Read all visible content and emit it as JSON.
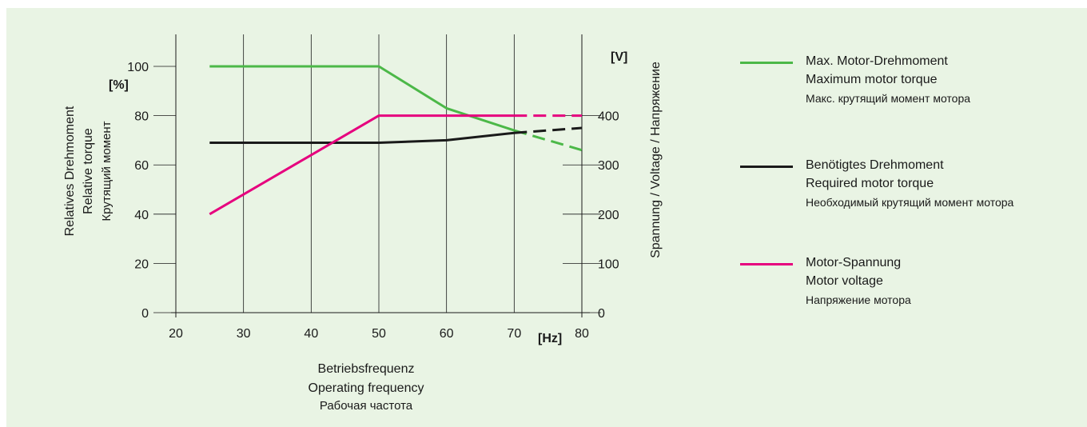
{
  "chart_data": {
    "type": "line",
    "x": [
      25,
      30,
      40,
      50,
      60,
      70,
      80
    ],
    "xlim": [
      20,
      80
    ],
    "ylim_left": [
      0,
      113
    ],
    "ylim_right": [
      0,
      565
    ],
    "x_ticks": [
      "20",
      "30",
      "40",
      "50",
      "60",
      "70",
      "80"
    ],
    "x_unit": "[Hz]",
    "y_ticks_left": [
      "0",
      "20",
      "40",
      "60",
      "80",
      "100"
    ],
    "y_unit_left": "[%]",
    "y_ticks_right": [
      "0",
      "100",
      "200",
      "300",
      "400"
    ],
    "y_unit_right": "[V]",
    "ylabel_left": [
      "Relatives Drehmoment",
      "Relative torque",
      "Крутящий момент"
    ],
    "ylabel_right": "Spannung / Voltage / Напряжение",
    "xlabel": [
      "Betriebsfrequenz",
      "Operating frequency",
      "Рабочая частота"
    ],
    "grid": "vertical",
    "legend_position": "right",
    "series": [
      {
        "name": [
          "Max. Motor-Drehmoment",
          "Maximum motor torque",
          "Макс. крутящий момент мотора"
        ],
        "color": "#4cb848",
        "axis": "left",
        "solid": [
          [
            25,
            100
          ],
          [
            50,
            100
          ],
          [
            60,
            83
          ],
          [
            70,
            74
          ]
        ],
        "dashed": [
          [
            70,
            74
          ],
          [
            80,
            66
          ]
        ]
      },
      {
        "name": [
          "Benötigtes Drehmoment",
          "Required motor torque",
          "Необходимый крутящий момент мотора"
        ],
        "color": "#1a1a1a",
        "axis": "left",
        "solid": [
          [
            25,
            69
          ],
          [
            50,
            69
          ],
          [
            60,
            70
          ],
          [
            70,
            73
          ]
        ],
        "dashed": [
          [
            70,
            73
          ],
          [
            80,
            75
          ]
        ]
      },
      {
        "name": [
          "Motor-Spannung",
          "Motor voltage",
          "Напряжение мотора"
        ],
        "color": "#e6007e",
        "axis": "right",
        "solid": [
          [
            25,
            200
          ],
          [
            50,
            400
          ],
          [
            70,
            400
          ]
        ],
        "dashed": [
          [
            70,
            400
          ],
          [
            80,
            400
          ]
        ]
      }
    ]
  }
}
